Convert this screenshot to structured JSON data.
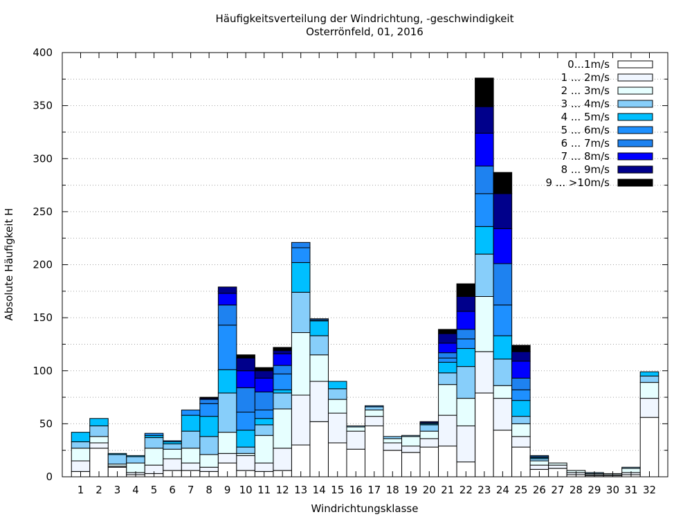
{
  "chart_data": {
    "type": "bar",
    "stacked": true,
    "title": "Häufigkeitsverteilung der Windrichtung, -geschwindigkeit",
    "subtitle": "Osterrönfeld, 01, 2016",
    "xlabel": "Windrichtungsklasse",
    "ylabel": "Absolute Häufigkeit H",
    "ylim": [
      0,
      400
    ],
    "yticks": [
      0,
      50,
      100,
      150,
      200,
      250,
      300,
      350,
      400
    ],
    "grid": true,
    "legend_position": "top-right",
    "categories": [
      "1",
      "2",
      "3",
      "4",
      "5",
      "6",
      "7",
      "8",
      "9",
      "10",
      "11",
      "12",
      "13",
      "14",
      "15",
      "16",
      "17",
      "18",
      "19",
      "20",
      "21",
      "22",
      "23",
      "24",
      "25",
      "26",
      "27",
      "28",
      "29",
      "30",
      "31",
      "32"
    ],
    "series": [
      {
        "name": "0...1m/s",
        "color": "#ffffff",
        "values": [
          5,
          27,
          9,
          2,
          3,
          6,
          6,
          5,
          13,
          6,
          5,
          6,
          30,
          52,
          32,
          26,
          48,
          25,
          23,
          28,
          29,
          14,
          79,
          44,
          28,
          7,
          8,
          2,
          1,
          1,
          2,
          56
        ]
      },
      {
        "name": "1 ... 2m/s",
        "color": "#f0f6ff",
        "values": [
          10,
          5,
          1,
          2,
          8,
          11,
          7,
          4,
          9,
          14,
          8,
          21,
          47,
          38,
          28,
          17,
          9,
          7,
          6,
          8,
          29,
          34,
          39,
          30,
          10,
          4,
          3,
          2,
          1,
          1,
          2,
          18
        ]
      },
      {
        "name": "2 ... 3m/s",
        "color": "#e6ffff",
        "values": [
          12,
          6,
          2,
          9,
          16,
          9,
          14,
          12,
          20,
          2,
          26,
          37,
          59,
          25,
          13,
          4,
          6,
          4,
          9,
          7,
          29,
          26,
          52,
          12,
          12,
          4,
          2,
          2,
          1,
          1,
          4,
          15
        ]
      },
      {
        "name": "3 ... 4m/s",
        "color": "#87cefa",
        "values": [
          6,
          10,
          9,
          6,
          10,
          5,
          16,
          17,
          37,
          6,
          10,
          15,
          38,
          18,
          10,
          1,
          3,
          2,
          1,
          6,
          11,
          30,
          40,
          25,
          7,
          2,
          0,
          0,
          1,
          0,
          1,
          6
        ]
      },
      {
        "name": "4 ... 5m/s",
        "color": "#00bfff",
        "values": [
          9,
          7,
          1,
          1,
          2,
          2,
          15,
          19,
          22,
          16,
          6,
          3,
          28,
          14,
          7,
          0,
          0,
          0,
          0,
          1,
          10,
          17,
          26,
          22,
          15,
          1,
          0,
          0,
          0,
          0,
          0,
          4
        ]
      },
      {
        "name": "5 ... 6m/s",
        "color": "#1e90ff",
        "values": [
          0,
          0,
          0,
          0,
          2,
          1,
          5,
          12,
          42,
          17,
          8,
          15,
          14,
          1,
          0,
          0,
          1,
          0,
          0,
          0,
          4,
          9,
          31,
          29,
          10,
          1,
          0,
          0,
          0,
          0,
          0,
          0
        ]
      },
      {
        "name": "6 ... 7m/s",
        "color": "#1e82f0",
        "values": [
          0,
          0,
          0,
          0,
          0,
          0,
          0,
          4,
          19,
          23,
          17,
          8,
          5,
          1,
          0,
          0,
          0,
          0,
          0,
          1,
          5,
          9,
          26,
          39,
          11,
          1,
          0,
          0,
          0,
          0,
          0,
          0
        ]
      },
      {
        "name": "7 ... 8m/s",
        "color": "#0000ff",
        "values": [
          0,
          0,
          0,
          0,
          0,
          0,
          0,
          0,
          11,
          16,
          13,
          11,
          0,
          0,
          0,
          0,
          0,
          0,
          0,
          0,
          9,
          17,
          31,
          33,
          16,
          0,
          0,
          0,
          0,
          0,
          0,
          0
        ]
      },
      {
        "name": "8 ... 9m/s",
        "color": "#00008b",
        "values": [
          0,
          0,
          0,
          0,
          0,
          0,
          0,
          1,
          6,
          12,
          7,
          3,
          0,
          0,
          0,
          0,
          0,
          0,
          0,
          1,
          9,
          14,
          25,
          33,
          9,
          0,
          0,
          0,
          0,
          0,
          0,
          0
        ]
      },
      {
        "name": "9 ... >10m/s",
        "color": "#000000",
        "values": [
          0,
          0,
          0,
          0,
          0,
          0,
          0,
          1,
          0,
          3,
          3,
          3,
          0,
          0,
          0,
          0,
          0,
          0,
          0,
          0,
          4,
          12,
          27,
          20,
          6,
          0,
          0,
          0,
          0,
          0,
          0,
          0
        ]
      }
    ]
  }
}
